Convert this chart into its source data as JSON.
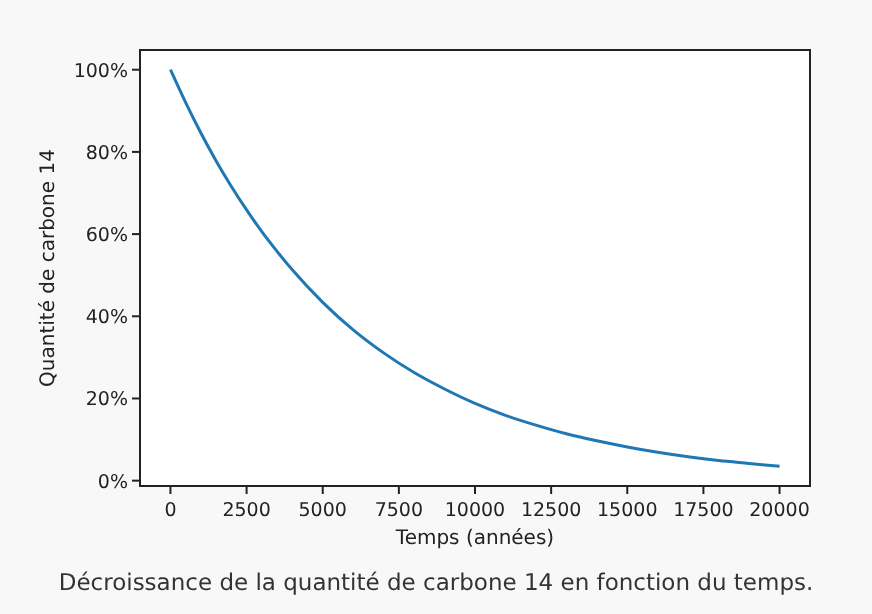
{
  "chart_data": {
    "type": "line",
    "xlabel": "Temps (années)",
    "ylabel": "Quantité de carbone 14",
    "x": [
      0,
      500,
      1000,
      1500,
      2000,
      2500,
      3000,
      3500,
      4000,
      5000,
      6000,
      7000,
      8000,
      9000,
      10000,
      11000,
      12000,
      13000,
      14000,
      15000,
      16000,
      17000,
      18000,
      19000,
      20000
    ],
    "series": [
      {
        "color": "#1f77b4",
        "values": [
          100,
          92.0,
          84.6,
          77.8,
          71.6,
          65.9,
          60.6,
          55.8,
          51.3,
          43.4,
          36.7,
          31.1,
          26.3,
          22.3,
          18.8,
          15.9,
          13.5,
          11.4,
          9.7,
          8.2,
          6.9,
          5.8,
          4.9,
          4.2,
          3.5
        ]
      }
    ],
    "xlim": [
      -1000,
      21000
    ],
    "xticks": [
      0,
      2500,
      5000,
      7500,
      10000,
      12500,
      15000,
      17500,
      20000
    ],
    "ylim": [
      -1.3,
      104.8
    ],
    "yticks": [
      {
        "value": 0,
        "label": "0%"
      },
      {
        "value": 20,
        "label": "20%"
      },
      {
        "value": 40,
        "label": "40%"
      },
      {
        "value": 60,
        "label": "60%"
      },
      {
        "value": 80,
        "label": "80%"
      },
      {
        "value": 100,
        "label": "100%"
      }
    ],
    "grid": false,
    "marker": "none",
    "line_style": "solid",
    "annotations": [
      "Décroissance de la quantité de carbone 14 en fonction du temps."
    ]
  }
}
